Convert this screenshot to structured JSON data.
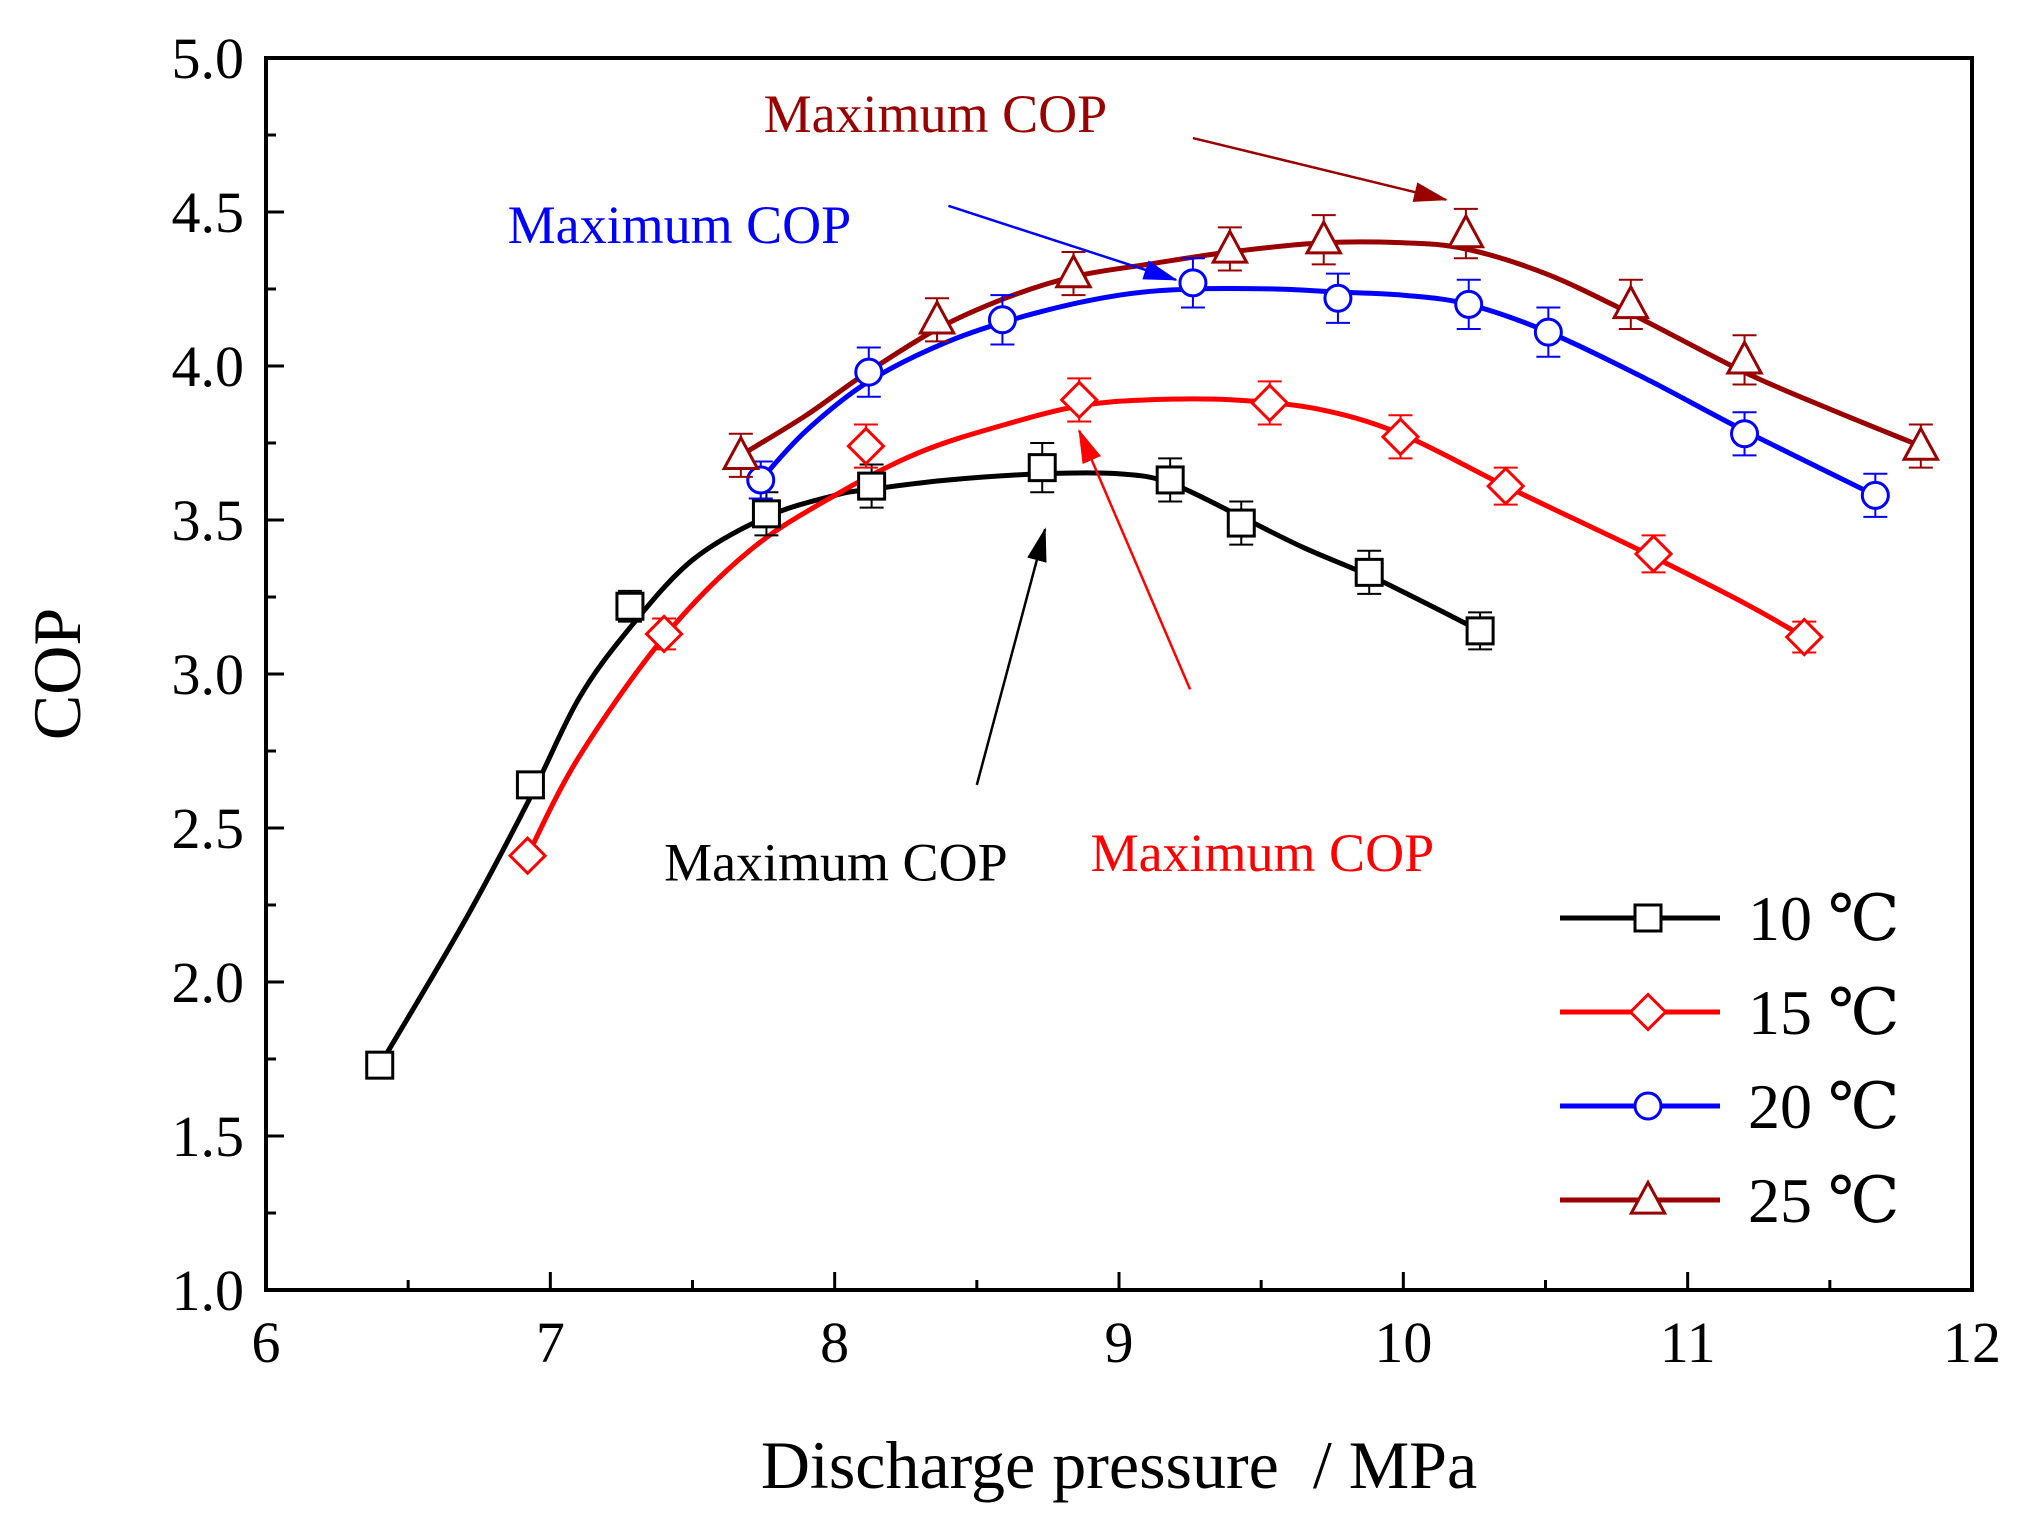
{
  "chart_data": {
    "type": "line",
    "xlabel": "Discharge pressure  / MPa",
    "ylabel": "COP",
    "xlim": [
      6,
      12
    ],
    "ylim": [
      1.0,
      5.0
    ],
    "x_ticks": [
      "6",
      "7",
      "8",
      "9",
      "10",
      "11",
      "12"
    ],
    "y_ticks": [
      "1.0",
      "1.5",
      "2.0",
      "2.5",
      "3.0",
      "3.5",
      "4.0",
      "4.5",
      "5.0"
    ],
    "grid": false,
    "legend_position": "bottom-right",
    "series": [
      {
        "name": "10 ℃",
        "color": "#000000",
        "marker": "square",
        "x": [
          6.4,
          6.93,
          7.28,
          7.76,
          8.13,
          8.73,
          9.18,
          9.43,
          9.88,
          10.27
        ],
        "y": [
          1.73,
          2.64,
          3.22,
          3.52,
          3.61,
          3.67,
          3.63,
          3.49,
          3.33,
          3.14
        ],
        "error": [
          0,
          0.04,
          0.05,
          0.07,
          0.07,
          0.08,
          0.07,
          0.07,
          0.07,
          0.06
        ],
        "fit_x": [
          6.4,
          6.7,
          6.93,
          7.1,
          7.28,
          7.5,
          7.76,
          8.0,
          8.13,
          8.4,
          8.73,
          9.0,
          9.18,
          9.43,
          9.65,
          9.88,
          10.1,
          10.27
        ],
        "fit_y": [
          1.73,
          2.2,
          2.6,
          2.92,
          3.15,
          3.37,
          3.51,
          3.58,
          3.6,
          3.63,
          3.65,
          3.65,
          3.62,
          3.51,
          3.41,
          3.32,
          3.22,
          3.14
        ]
      },
      {
        "name": "15 ℃",
        "color": "#ff0000",
        "marker": "diamond",
        "x": [
          6.92,
          7.4,
          8.11,
          8.86,
          9.53,
          9.99,
          10.36,
          10.88,
          11.41
        ],
        "y": [
          2.41,
          3.13,
          3.74,
          3.89,
          3.88,
          3.77,
          3.61,
          3.39,
          3.12
        ],
        "error": [
          0,
          0.05,
          0.07,
          0.07,
          0.07,
          0.07,
          0.06,
          0.06,
          0.05
        ],
        "fit_x": [
          6.92,
          7.1,
          7.4,
          7.7,
          8.0,
          8.3,
          8.6,
          8.86,
          9.1,
          9.4,
          9.7,
          9.99,
          10.36,
          10.7,
          10.88,
          11.2,
          11.41
        ],
        "fit_y": [
          2.41,
          2.73,
          3.12,
          3.4,
          3.58,
          3.72,
          3.81,
          3.87,
          3.89,
          3.89,
          3.86,
          3.78,
          3.61,
          3.46,
          3.38,
          3.23,
          3.12
        ]
      },
      {
        "name": "20 ℃",
        "color": "#0000ff",
        "marker": "circle",
        "x": [
          7.74,
          8.12,
          8.59,
          9.26,
          9.77,
          10.23,
          10.51,
          11.2,
          11.66
        ],
        "y": [
          3.63,
          3.98,
          4.15,
          4.27,
          4.22,
          4.2,
          4.11,
          3.78,
          3.58
        ],
        "error": [
          0.06,
          0.08,
          0.08,
          0.08,
          0.08,
          0.08,
          0.08,
          0.07,
          0.07
        ],
        "fit_x": [
          7.74,
          7.9,
          8.12,
          8.4,
          8.7,
          9.0,
          9.26,
          9.55,
          9.77,
          10.0,
          10.23,
          10.51,
          10.85,
          11.2,
          11.66
        ],
        "fit_y": [
          3.63,
          3.79,
          3.95,
          4.08,
          4.17,
          4.23,
          4.25,
          4.25,
          4.24,
          4.23,
          4.2,
          4.11,
          3.96,
          3.79,
          3.58
        ]
      },
      {
        "name": "25 ℃",
        "color": "#990000",
        "marker": "triangle",
        "x": [
          7.67,
          8.36,
          8.84,
          9.39,
          9.72,
          10.22,
          10.8,
          11.2,
          11.82
        ],
        "y": [
          3.71,
          4.15,
          4.3,
          4.38,
          4.41,
          4.43,
          4.2,
          4.02,
          3.74
        ],
        "error": [
          0.07,
          0.07,
          0.07,
          0.07,
          0.08,
          0.08,
          0.08,
          0.08,
          0.07
        ],
        "fit_x": [
          7.67,
          7.9,
          8.1,
          8.36,
          8.6,
          8.84,
          9.1,
          9.39,
          9.72,
          10.0,
          10.22,
          10.5,
          10.8,
          11.2,
          11.5,
          11.82
        ],
        "fit_y": [
          3.71,
          3.84,
          3.97,
          4.12,
          4.22,
          4.29,
          4.33,
          4.37,
          4.4,
          4.4,
          4.38,
          4.3,
          4.17,
          3.98,
          3.86,
          3.74
        ]
      }
    ],
    "annotations": [
      {
        "text": "Maximum COP",
        "color": "#990000",
        "tx": 7.75,
        "ty": 4.76,
        "ax0": 9.26,
        "ay0": 4.74,
        "ax1": 10.15,
        "ay1": 4.54
      },
      {
        "text": "Maximum COP",
        "color": "#0000ff",
        "tx": 6.85,
        "ty": 4.4,
        "ax0": 8.4,
        "ay0": 4.52,
        "ax1": 9.2,
        "ay1": 4.28
      },
      {
        "text": "Maximum COP",
        "color": "#ff0000",
        "tx": 8.9,
        "ty": 2.36,
        "ax0": 9.25,
        "ay0": 2.95,
        "ax1": 8.86,
        "ay1": 3.79
      },
      {
        "text": "Maximum COP",
        "color": "#000000",
        "tx": 7.4,
        "ty": 2.33,
        "ax0": 8.5,
        "ay0": 2.64,
        "ax1": 8.74,
        "ay1": 3.47
      }
    ]
  }
}
